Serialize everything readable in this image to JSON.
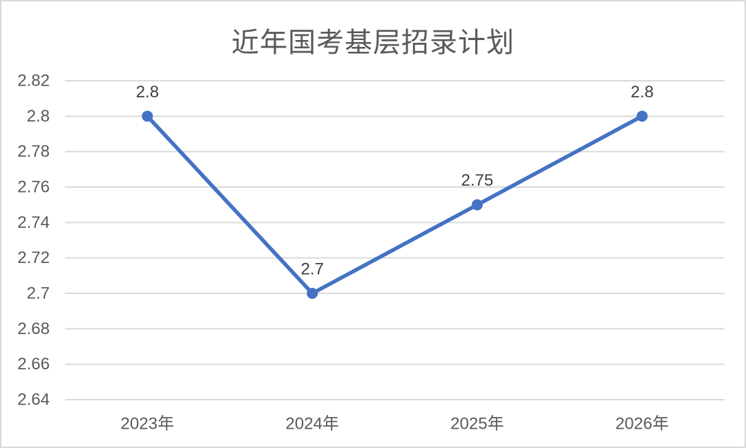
{
  "chart_data": {
    "type": "line",
    "title": "近年国考基层招录计划",
    "categories": [
      "2023年",
      "2024年",
      "2025年",
      "2026年"
    ],
    "values": [
      2.8,
      2.7,
      2.75,
      2.8
    ],
    "point_labels": [
      "2.8",
      "2.7",
      "2.75",
      "2.8"
    ],
    "y_ticks": [
      "2.82",
      "2.8",
      "2.78",
      "2.76",
      "2.74",
      "2.72",
      "2.7",
      "2.68",
      "2.66",
      "2.64"
    ],
    "xlabel": "",
    "ylabel": "",
    "ylim": [
      2.64,
      2.82
    ],
    "grid": "horizontal",
    "legend": "none",
    "colors": {
      "line": "#4472C4",
      "marker": "#4472C4",
      "gridline": "#D9D9D9",
      "tick_label": "#595959",
      "data_label": "#3F3F3F",
      "title": "#595959",
      "border": "#D9D9D9",
      "background": "#FFFFFF"
    }
  }
}
